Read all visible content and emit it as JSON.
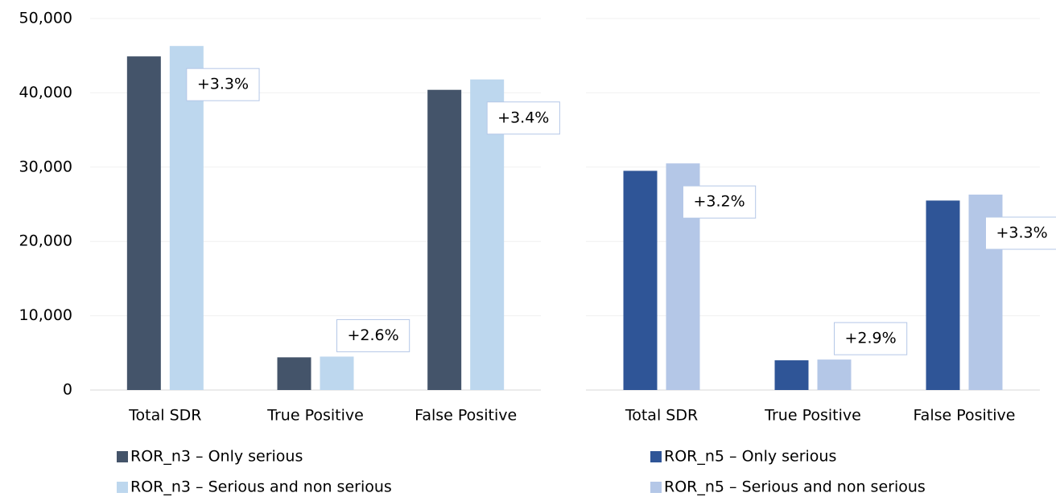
{
  "chart_data": [
    {
      "type": "bar",
      "categories": [
        "Total SDR",
        "True Positive",
        "False Positive"
      ],
      "series": [
        {
          "name": "ROR_n3 – Only serious",
          "color": "#44546a",
          "values": [
            44900,
            4400,
            40400
          ]
        },
        {
          "name": "ROR_n3 – Serious and non serious",
          "color": "#bdd7ee",
          "values": [
            46300,
            4500,
            41800
          ]
        }
      ],
      "annotations": [
        "+3.3%",
        "+2.6%",
        "+3.4%"
      ],
      "ylim": [
        0,
        50000
      ],
      "yticks": [
        0,
        {
          "value": 10000,
          "label": "10,000"
        },
        {
          "value": 20000,
          "label": "20,000"
        },
        {
          "value": 30000,
          "label": "30,000"
        },
        {
          "value": 40000,
          "label": "40,000"
        },
        {
          "value": 50000,
          "label": "50,000"
        }
      ],
      "grid": true,
      "tick_labels": true
    },
    {
      "type": "bar",
      "categories": [
        "Total SDR",
        "True Positive",
        "False Positive"
      ],
      "series": [
        {
          "name": "ROR_n5 – Only serious",
          "color": "#2f5597",
          "values": [
            29500,
            4000,
            25500
          ]
        },
        {
          "name": "ROR_n5 – Serious and non serious",
          "color": "#b4c7e7",
          "values": [
            30500,
            4100,
            26300
          ]
        }
      ],
      "annotations": [
        "+3.2%",
        "+2.9%",
        "+3.3%"
      ],
      "ylim": [
        0,
        50000
      ],
      "yticks": [
        0,
        10000,
        20000,
        30000,
        40000,
        50000
      ],
      "grid": true,
      "tick_labels": false
    }
  ]
}
